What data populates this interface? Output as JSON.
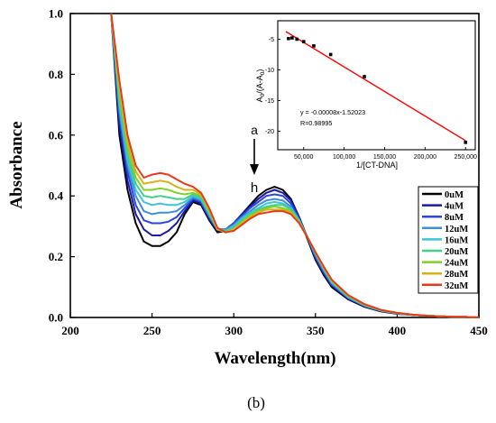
{
  "panel_label": "(b)",
  "chart_data": [
    {
      "type": "line",
      "xlabel": "Wavelength(nm)",
      "ylabel": "Absorbance",
      "xlim": [
        200,
        450
      ],
      "ylim": [
        0,
        1.0
      ],
      "xticks": [
        200,
        250,
        300,
        350,
        400,
        450
      ],
      "yticks": [
        0.0,
        0.2,
        0.4,
        0.6,
        0.8,
        1.0
      ],
      "xtick_labels": [
        "200",
        "250",
        "300",
        "350",
        "400",
        "450"
      ],
      "ytick_labels": [
        "0.0",
        "0.2",
        "0.4",
        "0.6",
        "0.8",
        "1.0"
      ],
      "grid": false,
      "legend_position": "right",
      "annotations": {
        "arrow_top_label": "a",
        "arrow_bottom_label": "h"
      },
      "x": [
        225,
        230,
        235,
        240,
        245,
        250,
        255,
        260,
        265,
        270,
        275,
        280,
        285,
        290,
        295,
        300,
        305,
        310,
        315,
        320,
        325,
        330,
        335,
        340,
        345,
        350,
        355,
        360,
        370,
        380,
        390,
        400,
        410,
        420,
        430,
        440,
        450
      ],
      "series": [
        {
          "name": "0uM",
          "color": "#000000",
          "values": [
            1.0,
            0.6,
            0.42,
            0.31,
            0.25,
            0.235,
            0.235,
            0.25,
            0.28,
            0.34,
            0.38,
            0.37,
            0.32,
            0.28,
            0.285,
            0.31,
            0.34,
            0.37,
            0.4,
            0.42,
            0.43,
            0.42,
            0.39,
            0.33,
            0.26,
            0.19,
            0.14,
            0.1,
            0.06,
            0.035,
            0.02,
            0.012,
            0.008,
            0.005,
            0.003,
            0.002,
            0.0
          ]
        },
        {
          "name": "4uM",
          "color": "#1a1aa6",
          "values": [
            1.0,
            0.63,
            0.45,
            0.34,
            0.29,
            0.27,
            0.27,
            0.285,
            0.31,
            0.35,
            0.385,
            0.375,
            0.325,
            0.285,
            0.29,
            0.31,
            0.34,
            0.365,
            0.39,
            0.41,
            0.42,
            0.41,
            0.385,
            0.33,
            0.265,
            0.195,
            0.145,
            0.105,
            0.062,
            0.037,
            0.021,
            0.013,
            0.008,
            0.005,
            0.003,
            0.002,
            0.0
          ]
        },
        {
          "name": "8uM",
          "color": "#2946e0",
          "values": [
            1.0,
            0.66,
            0.48,
            0.37,
            0.32,
            0.31,
            0.31,
            0.315,
            0.33,
            0.36,
            0.39,
            0.38,
            0.33,
            0.29,
            0.29,
            0.31,
            0.335,
            0.36,
            0.38,
            0.4,
            0.405,
            0.4,
            0.375,
            0.325,
            0.265,
            0.2,
            0.15,
            0.108,
            0.064,
            0.038,
            0.022,
            0.013,
            0.008,
            0.005,
            0.003,
            0.002,
            0.0
          ]
        },
        {
          "name": "12uM",
          "color": "#3f8fd6",
          "values": [
            1.0,
            0.68,
            0.5,
            0.4,
            0.35,
            0.34,
            0.345,
            0.345,
            0.35,
            0.37,
            0.395,
            0.385,
            0.335,
            0.29,
            0.29,
            0.305,
            0.33,
            0.35,
            0.37,
            0.385,
            0.39,
            0.385,
            0.365,
            0.32,
            0.265,
            0.205,
            0.155,
            0.112,
            0.066,
            0.039,
            0.022,
            0.013,
            0.008,
            0.005,
            0.003,
            0.002,
            0.0
          ]
        },
        {
          "name": "16uM",
          "color": "#3fc3d9",
          "values": [
            1.0,
            0.7,
            0.52,
            0.42,
            0.38,
            0.37,
            0.375,
            0.37,
            0.37,
            0.38,
            0.4,
            0.39,
            0.34,
            0.29,
            0.285,
            0.3,
            0.325,
            0.345,
            0.36,
            0.375,
            0.38,
            0.375,
            0.36,
            0.32,
            0.265,
            0.21,
            0.16,
            0.115,
            0.068,
            0.04,
            0.023,
            0.014,
            0.009,
            0.005,
            0.003,
            0.002,
            0.0
          ]
        },
        {
          "name": "20uM",
          "color": "#3fd18a",
          "values": [
            1.0,
            0.72,
            0.54,
            0.44,
            0.4,
            0.395,
            0.4,
            0.395,
            0.39,
            0.39,
            0.405,
            0.395,
            0.345,
            0.29,
            0.285,
            0.295,
            0.32,
            0.34,
            0.355,
            0.365,
            0.37,
            0.37,
            0.355,
            0.315,
            0.265,
            0.21,
            0.16,
            0.118,
            0.07,
            0.041,
            0.024,
            0.014,
            0.009,
            0.005,
            0.003,
            0.002,
            0.0
          ]
        },
        {
          "name": "24uM",
          "color": "#7fd12a",
          "values": [
            1.0,
            0.74,
            0.56,
            0.46,
            0.42,
            0.42,
            0.425,
            0.42,
            0.41,
            0.405,
            0.41,
            0.4,
            0.35,
            0.29,
            0.28,
            0.29,
            0.315,
            0.335,
            0.35,
            0.36,
            0.365,
            0.36,
            0.35,
            0.315,
            0.265,
            0.215,
            0.165,
            0.12,
            0.072,
            0.042,
            0.024,
            0.015,
            0.009,
            0.005,
            0.003,
            0.002,
            0.0
          ]
        },
        {
          "name": "28uM",
          "color": "#d4b21a",
          "values": [
            1.0,
            0.76,
            0.58,
            0.48,
            0.44,
            0.445,
            0.45,
            0.445,
            0.43,
            0.42,
            0.42,
            0.405,
            0.355,
            0.29,
            0.28,
            0.29,
            0.31,
            0.33,
            0.345,
            0.355,
            0.355,
            0.355,
            0.345,
            0.31,
            0.265,
            0.215,
            0.165,
            0.122,
            0.073,
            0.043,
            0.025,
            0.015,
            0.009,
            0.005,
            0.003,
            0.002,
            0.0
          ]
        },
        {
          "name": "32uM",
          "color": "#e8391a",
          "values": [
            1.0,
            0.78,
            0.6,
            0.5,
            0.46,
            0.47,
            0.475,
            0.47,
            0.455,
            0.44,
            0.43,
            0.41,
            0.36,
            0.295,
            0.28,
            0.285,
            0.305,
            0.325,
            0.34,
            0.345,
            0.35,
            0.35,
            0.34,
            0.31,
            0.265,
            0.215,
            0.168,
            0.124,
            0.074,
            0.044,
            0.025,
            0.015,
            0.009,
            0.005,
            0.003,
            0.002,
            0.0
          ]
        }
      ]
    },
    {
      "type": "scatter",
      "xlabel": "1/[CT-DNA]",
      "ylabel": "A0/(A-A0)",
      "xlim": [
        18000,
        262000
      ],
      "ylim": [
        -23,
        -2
      ],
      "xticks": [
        50000,
        100000,
        150000,
        200000,
        250000
      ],
      "xtick_labels": [
        "50,000",
        "100,000",
        "150,000",
        "200,000",
        "250,000"
      ],
      "yticks": [
        -5,
        -10,
        -15,
        -20
      ],
      "ytick_labels": [
        "-5",
        "-10",
        "-15",
        "-20"
      ],
      "grid": false,
      "point_color": "#000000",
      "fit_color": "#ff0000",
      "points": [
        {
          "x": 31250,
          "y": -4.9
        },
        {
          "x": 35714,
          "y": -4.8
        },
        {
          "x": 41667,
          "y": -5.0
        },
        {
          "x": 50000,
          "y": -5.4
        },
        {
          "x": 62500,
          "y": -6.1
        },
        {
          "x": 83333,
          "y": -7.5
        },
        {
          "x": 125000,
          "y": -11.1
        },
        {
          "x": 250000,
          "y": -21.8
        }
      ],
      "fit": {
        "slope": -8e-05,
        "intercept": -1.52023,
        "x_range": [
          28000,
          250000
        ]
      },
      "equation_text": "y = -0.00008x-1.52023",
      "r_text": "R=0.98995"
    }
  ]
}
